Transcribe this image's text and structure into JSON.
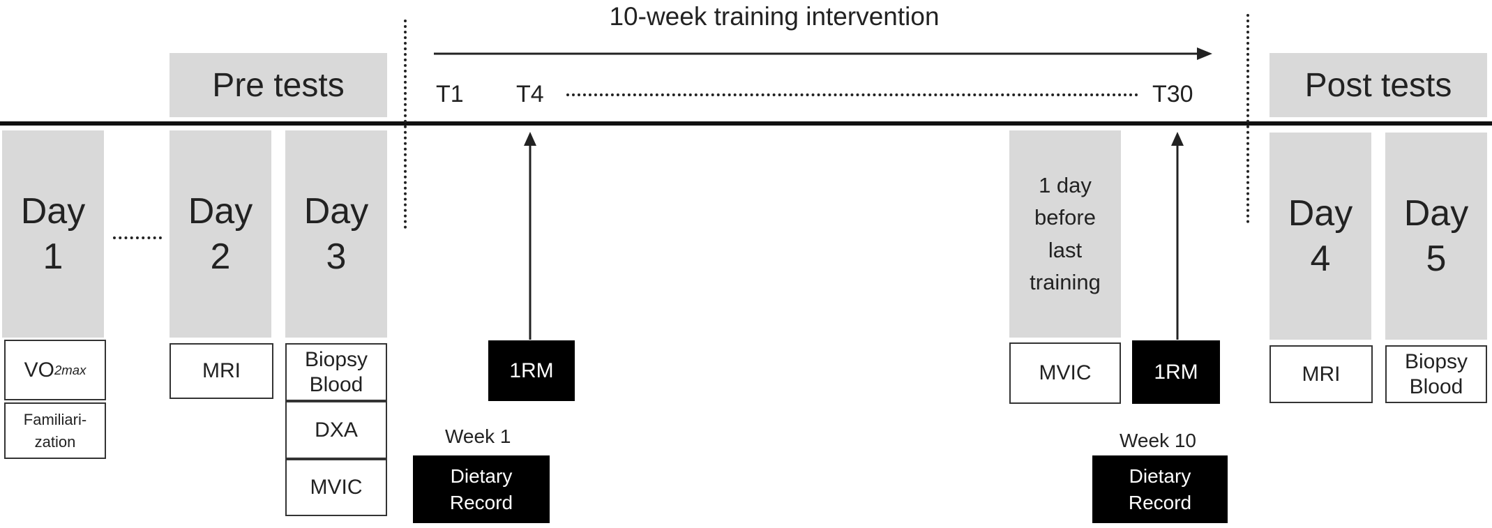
{
  "intervention": {
    "title": "10-week training intervention"
  },
  "headers": {
    "pre": "Pre tests",
    "post": "Post tests"
  },
  "timeline": {
    "t1": "T1",
    "t4": "T4",
    "t30": "T30"
  },
  "days": [
    {
      "word": "Day",
      "num": "1"
    },
    {
      "word": "Day",
      "num": "2"
    },
    {
      "word": "Day",
      "num": "3"
    },
    {
      "word": "Day",
      "num": "4"
    },
    {
      "word": "Day",
      "num": "5"
    }
  ],
  "last_day": [
    "1 day",
    "before",
    "last",
    "training"
  ],
  "tests": {
    "vo2": {
      "main": "VO",
      "sub": "2max"
    },
    "familiarization": [
      "Familiari-",
      "zation"
    ],
    "mri_pre": "MRI",
    "biopsy_pre": [
      "Biopsy",
      "Blood"
    ],
    "dxa": "DXA",
    "mvic_pre": "MVIC",
    "mvic_post": "MVIC",
    "mri_post": "MRI",
    "biopsy_post": [
      "Biopsy",
      "Blood"
    ],
    "rm_t4": "1RM",
    "rm_t30": "1RM"
  },
  "diet": {
    "week1": "Week 1",
    "week10": "Week 10",
    "record1": [
      "Dietary",
      "Record"
    ],
    "record10": [
      "Dietary",
      "Record"
    ]
  }
}
